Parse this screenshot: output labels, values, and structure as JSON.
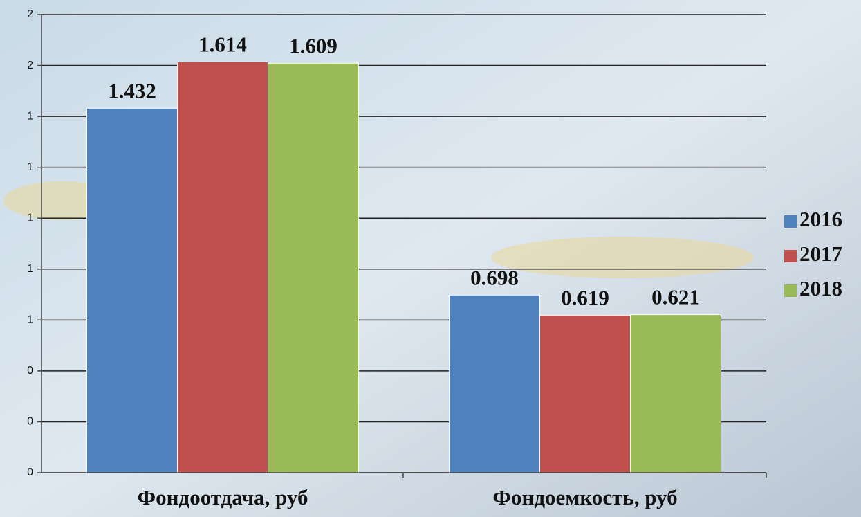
{
  "chart_data": {
    "type": "bar",
    "categories": [
      "Фондоотдача, руб",
      "Фондоемкость, руб"
    ],
    "series": [
      {
        "name": "2016",
        "color": "#4f81bd",
        "values": [
          1.432,
          0.698
        ]
      },
      {
        "name": "2017",
        "color": "#c0504d",
        "values": [
          1.614,
          0.619
        ]
      },
      {
        "name": "2018",
        "color": "#9bbb59",
        "values": [
          1.609,
          0.621
        ]
      }
    ],
    "ylim": [
      0,
      1.8
    ],
    "yticks": [
      0,
      {
        "value": 0.2,
        "label": "0"
      },
      {
        "value": 0.4,
        "label": "0"
      },
      {
        "value": 0.6,
        "label": "1"
      },
      {
        "value": 0.8,
        "label": "1"
      },
      1,
      {
        "value": 1.2,
        "label": "1"
      },
      {
        "value": 1.4,
        "label": "1"
      },
      {
        "value": 1.6,
        "label": "2"
      },
      {
        "value": 1.8,
        "label": "2"
      }
    ],
    "grid": true,
    "legend": "right"
  }
}
